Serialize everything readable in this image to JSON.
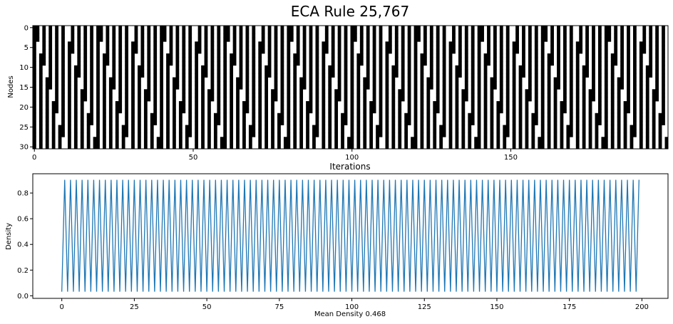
{
  "figure": {
    "title": "ECA Rule 25,767"
  },
  "chart_data": [
    {
      "type": "heatmap",
      "title": "ECA Rule 25,767",
      "xlabel": "Iterations",
      "ylabel": "Nodes",
      "xlim": [
        0,
        199
      ],
      "ylim": [
        30,
        0
      ],
      "xticks": [
        0,
        50,
        100,
        150
      ],
      "yticks": [
        0,
        5,
        10,
        15,
        20,
        25,
        30
      ],
      "rows": 31,
      "cols": 200,
      "colors": {
        "on": "#000000",
        "off": "#ffffff"
      },
      "pattern": "Elementary cellular automaton; nodes alternate on/off every iteration with diagonal white defect stripes descending from node 0 to node 30 roughly every 10 iterations"
    },
    {
      "type": "line",
      "xlabel": "Mean Density 0.468",
      "ylabel": "Density",
      "xlim": [
        -10,
        209
      ],
      "ylim": [
        -0.02,
        0.95
      ],
      "xticks": [
        0,
        25,
        50,
        75,
        100,
        125,
        150,
        175,
        200
      ],
      "yticks": [
        0.0,
        0.2,
        0.4,
        0.6,
        0.8
      ],
      "line_color": "#1f77b4",
      "series": [
        {
          "x_start": 0,
          "x_end": 199,
          "pattern": "alternating",
          "even_value": 0.032,
          "odd_value": 0.903
        }
      ],
      "mean_density": 0.468
    }
  ]
}
